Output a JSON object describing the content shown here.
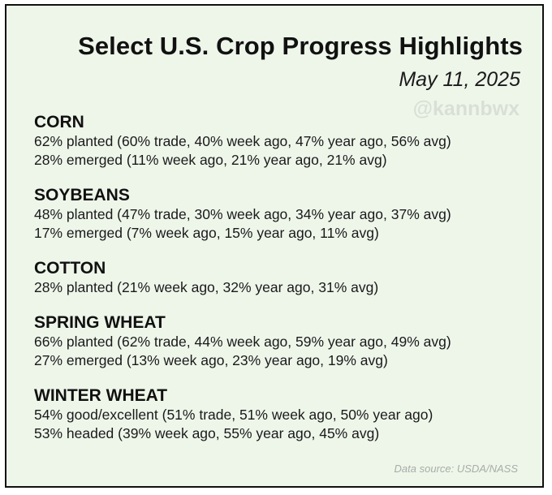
{
  "title": "Select U.S. Crop Progress Highlights",
  "date": "May 11, 2025",
  "watermark": "@kannbwx",
  "source": "Data source: USDA/NASS",
  "sections": [
    {
      "name": "CORN",
      "lines": [
        "62% planted (60% trade, 40% week ago, 47% year ago, 56% avg)",
        "28% emerged (11% week ago, 21% year ago, 21% avg)"
      ]
    },
    {
      "name": "SOYBEANS",
      "lines": [
        "48% planted (47% trade, 30% week ago, 34% year ago, 37% avg)",
        "17% emerged (7% week ago, 15% year ago, 11% avg)"
      ]
    },
    {
      "name": "COTTON",
      "lines": [
        "28% planted (21% week ago, 32% year ago, 31% avg)"
      ]
    },
    {
      "name": "SPRING WHEAT",
      "lines": [
        "66% planted (62% trade, 44% week ago, 59% year ago, 49% avg)",
        "27% emerged (13% week ago, 23% year ago, 19% avg)"
      ]
    },
    {
      "name": "WINTER WHEAT",
      "lines": [
        "54% good/excellent (51% trade, 51% week ago, 50% year ago)",
        "53% headed (39% week ago, 55% year ago, 45% avg)"
      ]
    }
  ]
}
